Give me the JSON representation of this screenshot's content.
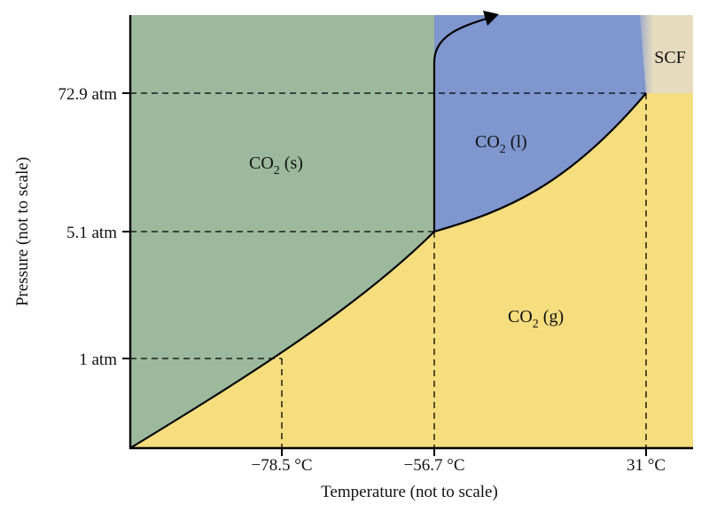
{
  "axes": {
    "x_title": "Temperature (not to scale)",
    "y_title": "Pressure (not to scale)",
    "x_ticks": [
      "−78.5 °C",
      "−56.7 °C",
      "31 °C"
    ],
    "y_ticks": [
      "72.9 atm",
      "5.1 atm",
      "1 atm"
    ]
  },
  "regions": {
    "solid": {
      "main": "CO",
      "sub": "2",
      "state": " (s)"
    },
    "liquid": {
      "main": "CO",
      "sub": "2",
      "state": " (l)"
    },
    "gas": {
      "main": "CO",
      "sub": "2",
      "state": " (g)"
    },
    "scf": "SCF"
  },
  "colors": {
    "solid": "#9db99d",
    "liquid": "#7f96cf",
    "gas": "#f6dd7e",
    "scf": "#e6dbbe",
    "line": "#000000"
  }
}
